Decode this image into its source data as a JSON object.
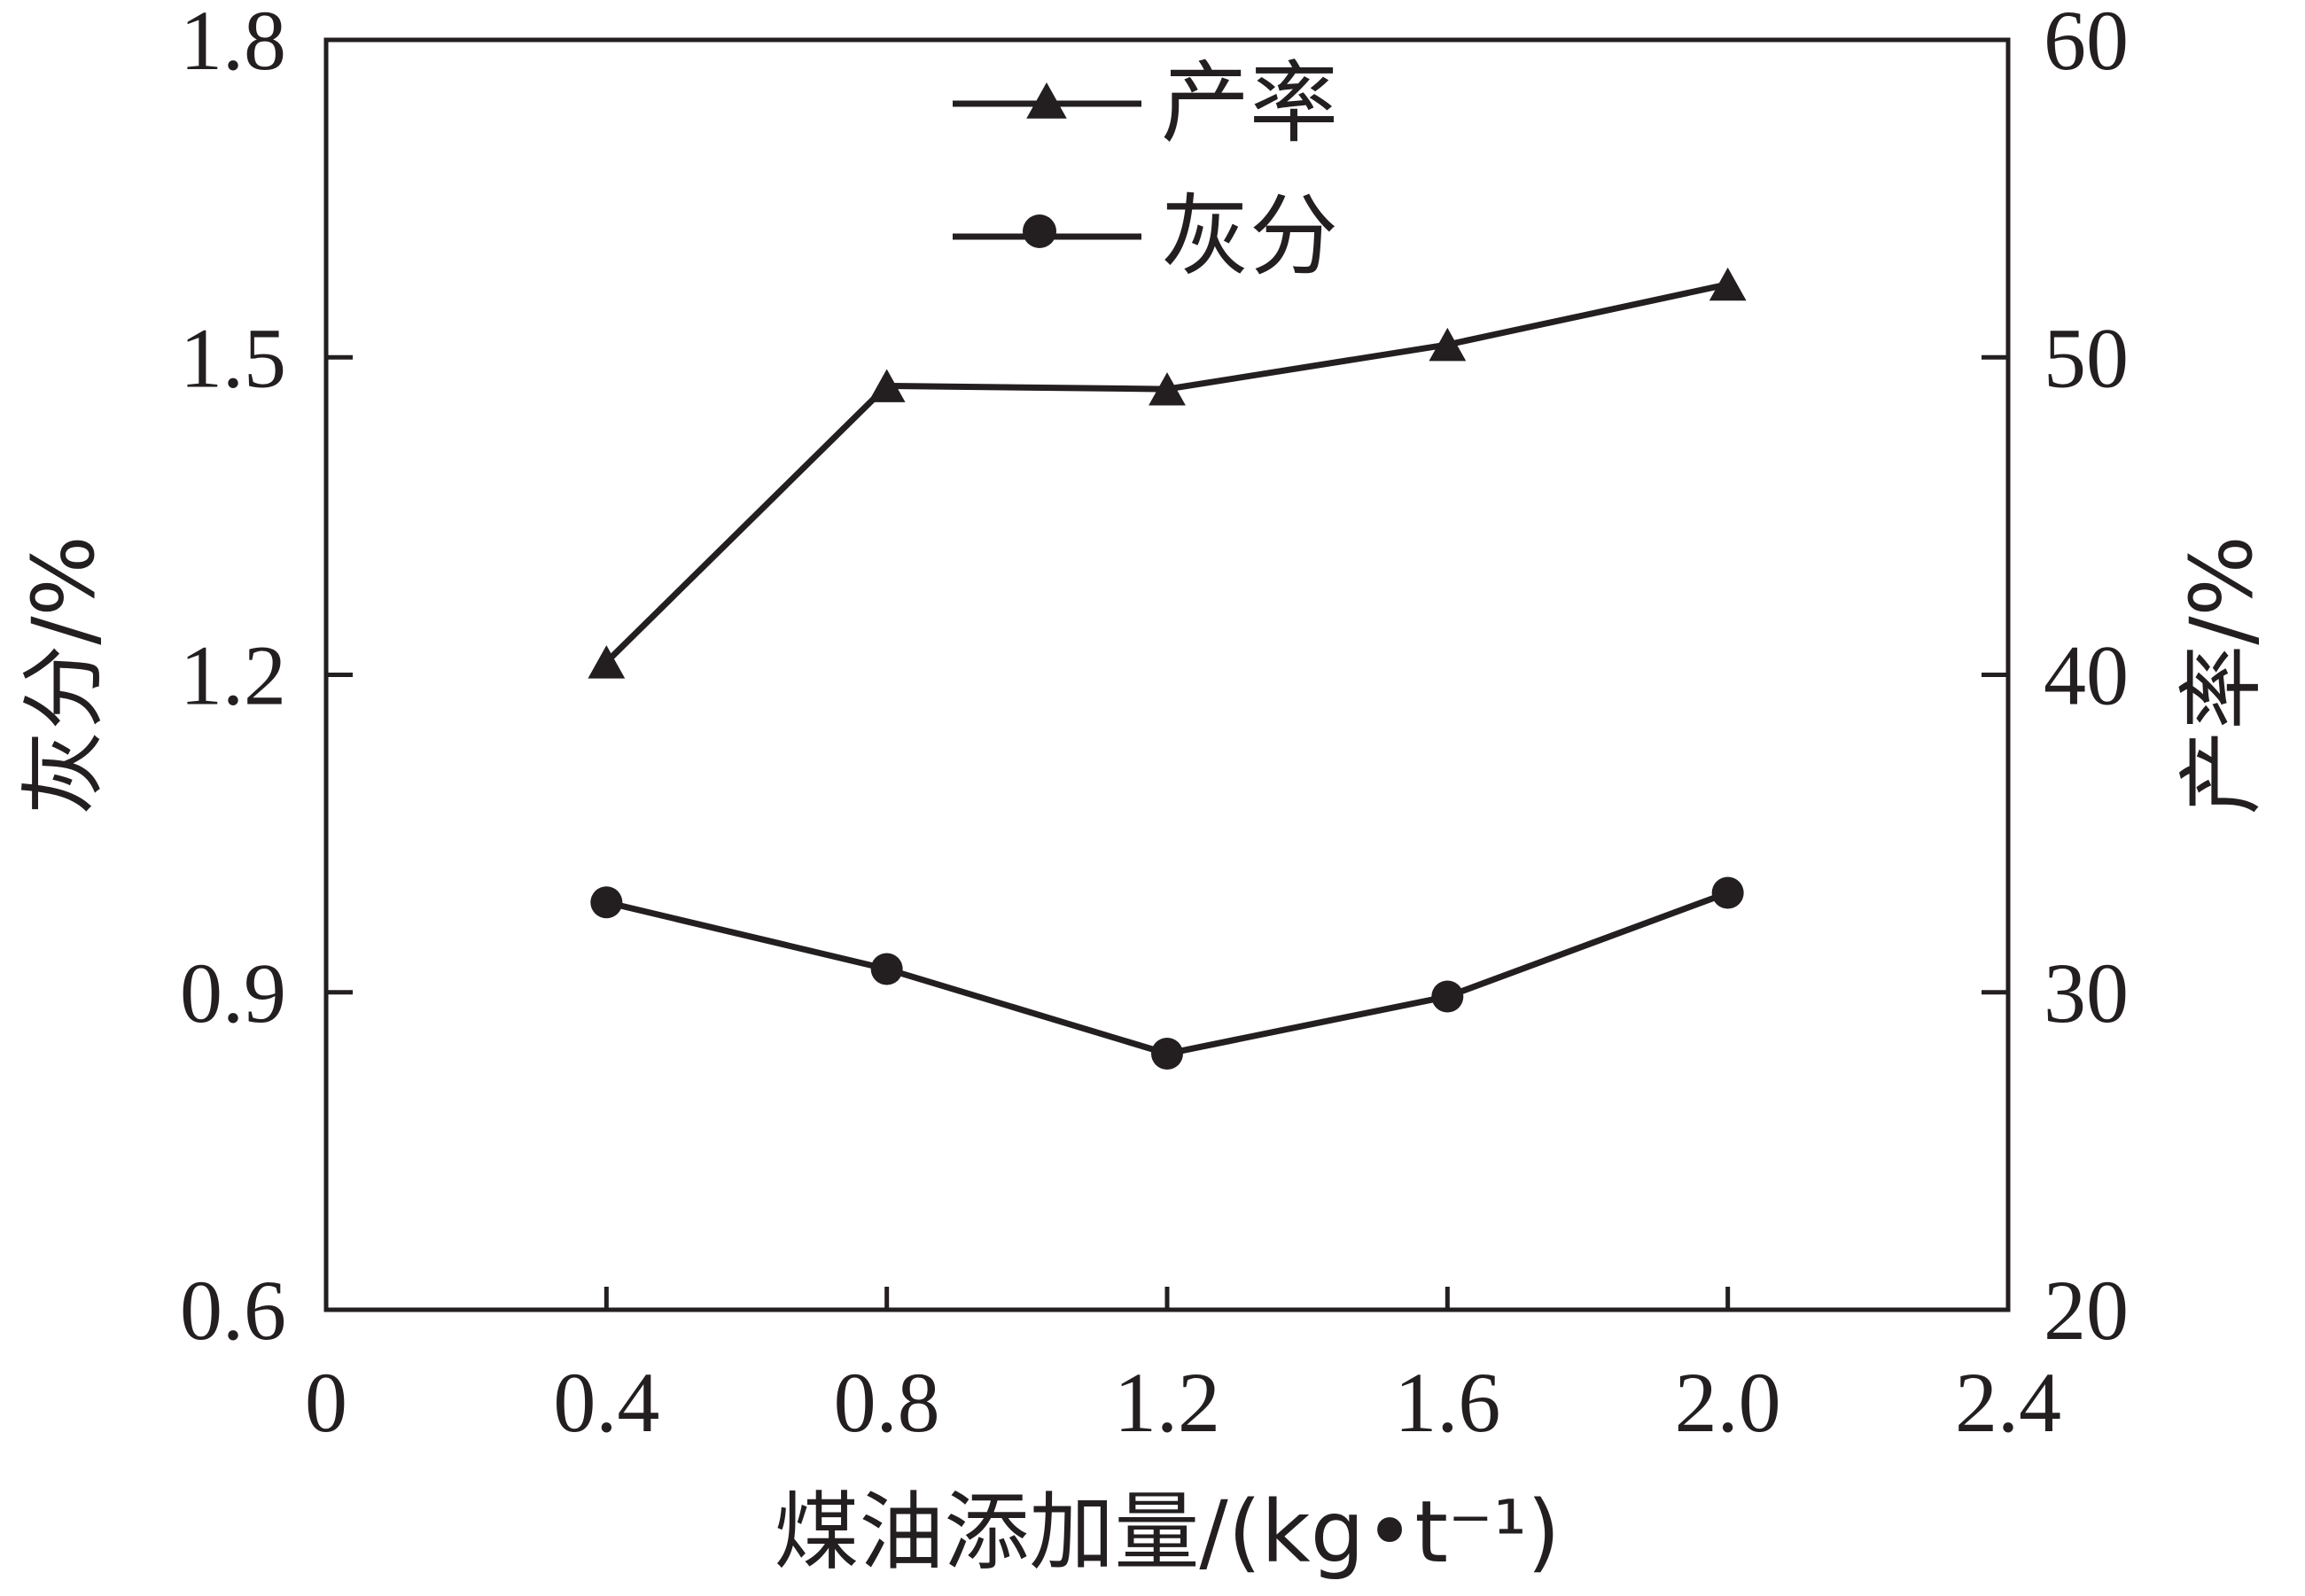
{
  "chart_data": {
    "type": "line",
    "x": [
      0.4,
      0.8,
      1.2,
      1.6,
      2.0
    ],
    "xlabel": "煤油添加量/(kg•t⁻¹)",
    "ylabel_left": "灰分/%",
    "ylabel_right": "产率/%",
    "xlim": [
      0,
      2.4
    ],
    "ylim_left": [
      0.6,
      1.8
    ],
    "ylim_right": [
      20,
      60
    ],
    "xticks": [
      "0",
      "0.4",
      "0.8",
      "1.2",
      "1.6",
      "2.0",
      "2.4"
    ],
    "yticks_left": [
      "0.6",
      "0.9",
      "1.2",
      "1.5",
      "1.8"
    ],
    "yticks_right": [
      "20",
      "30",
      "40",
      "50",
      "60"
    ],
    "grid": false,
    "legend_position": "top-center",
    "series": [
      {
        "name": "产率",
        "axis": "right",
        "marker": "triangle",
        "values": [
          40.4,
          49.1,
          49.0,
          50.4,
          52.3
        ]
      },
      {
        "name": "灰分",
        "axis": "left",
        "marker": "circle",
        "values": [
          0.985,
          0.922,
          0.842,
          0.896,
          0.994
        ]
      }
    ],
    "colors": {
      "line": "#231f20"
    }
  }
}
